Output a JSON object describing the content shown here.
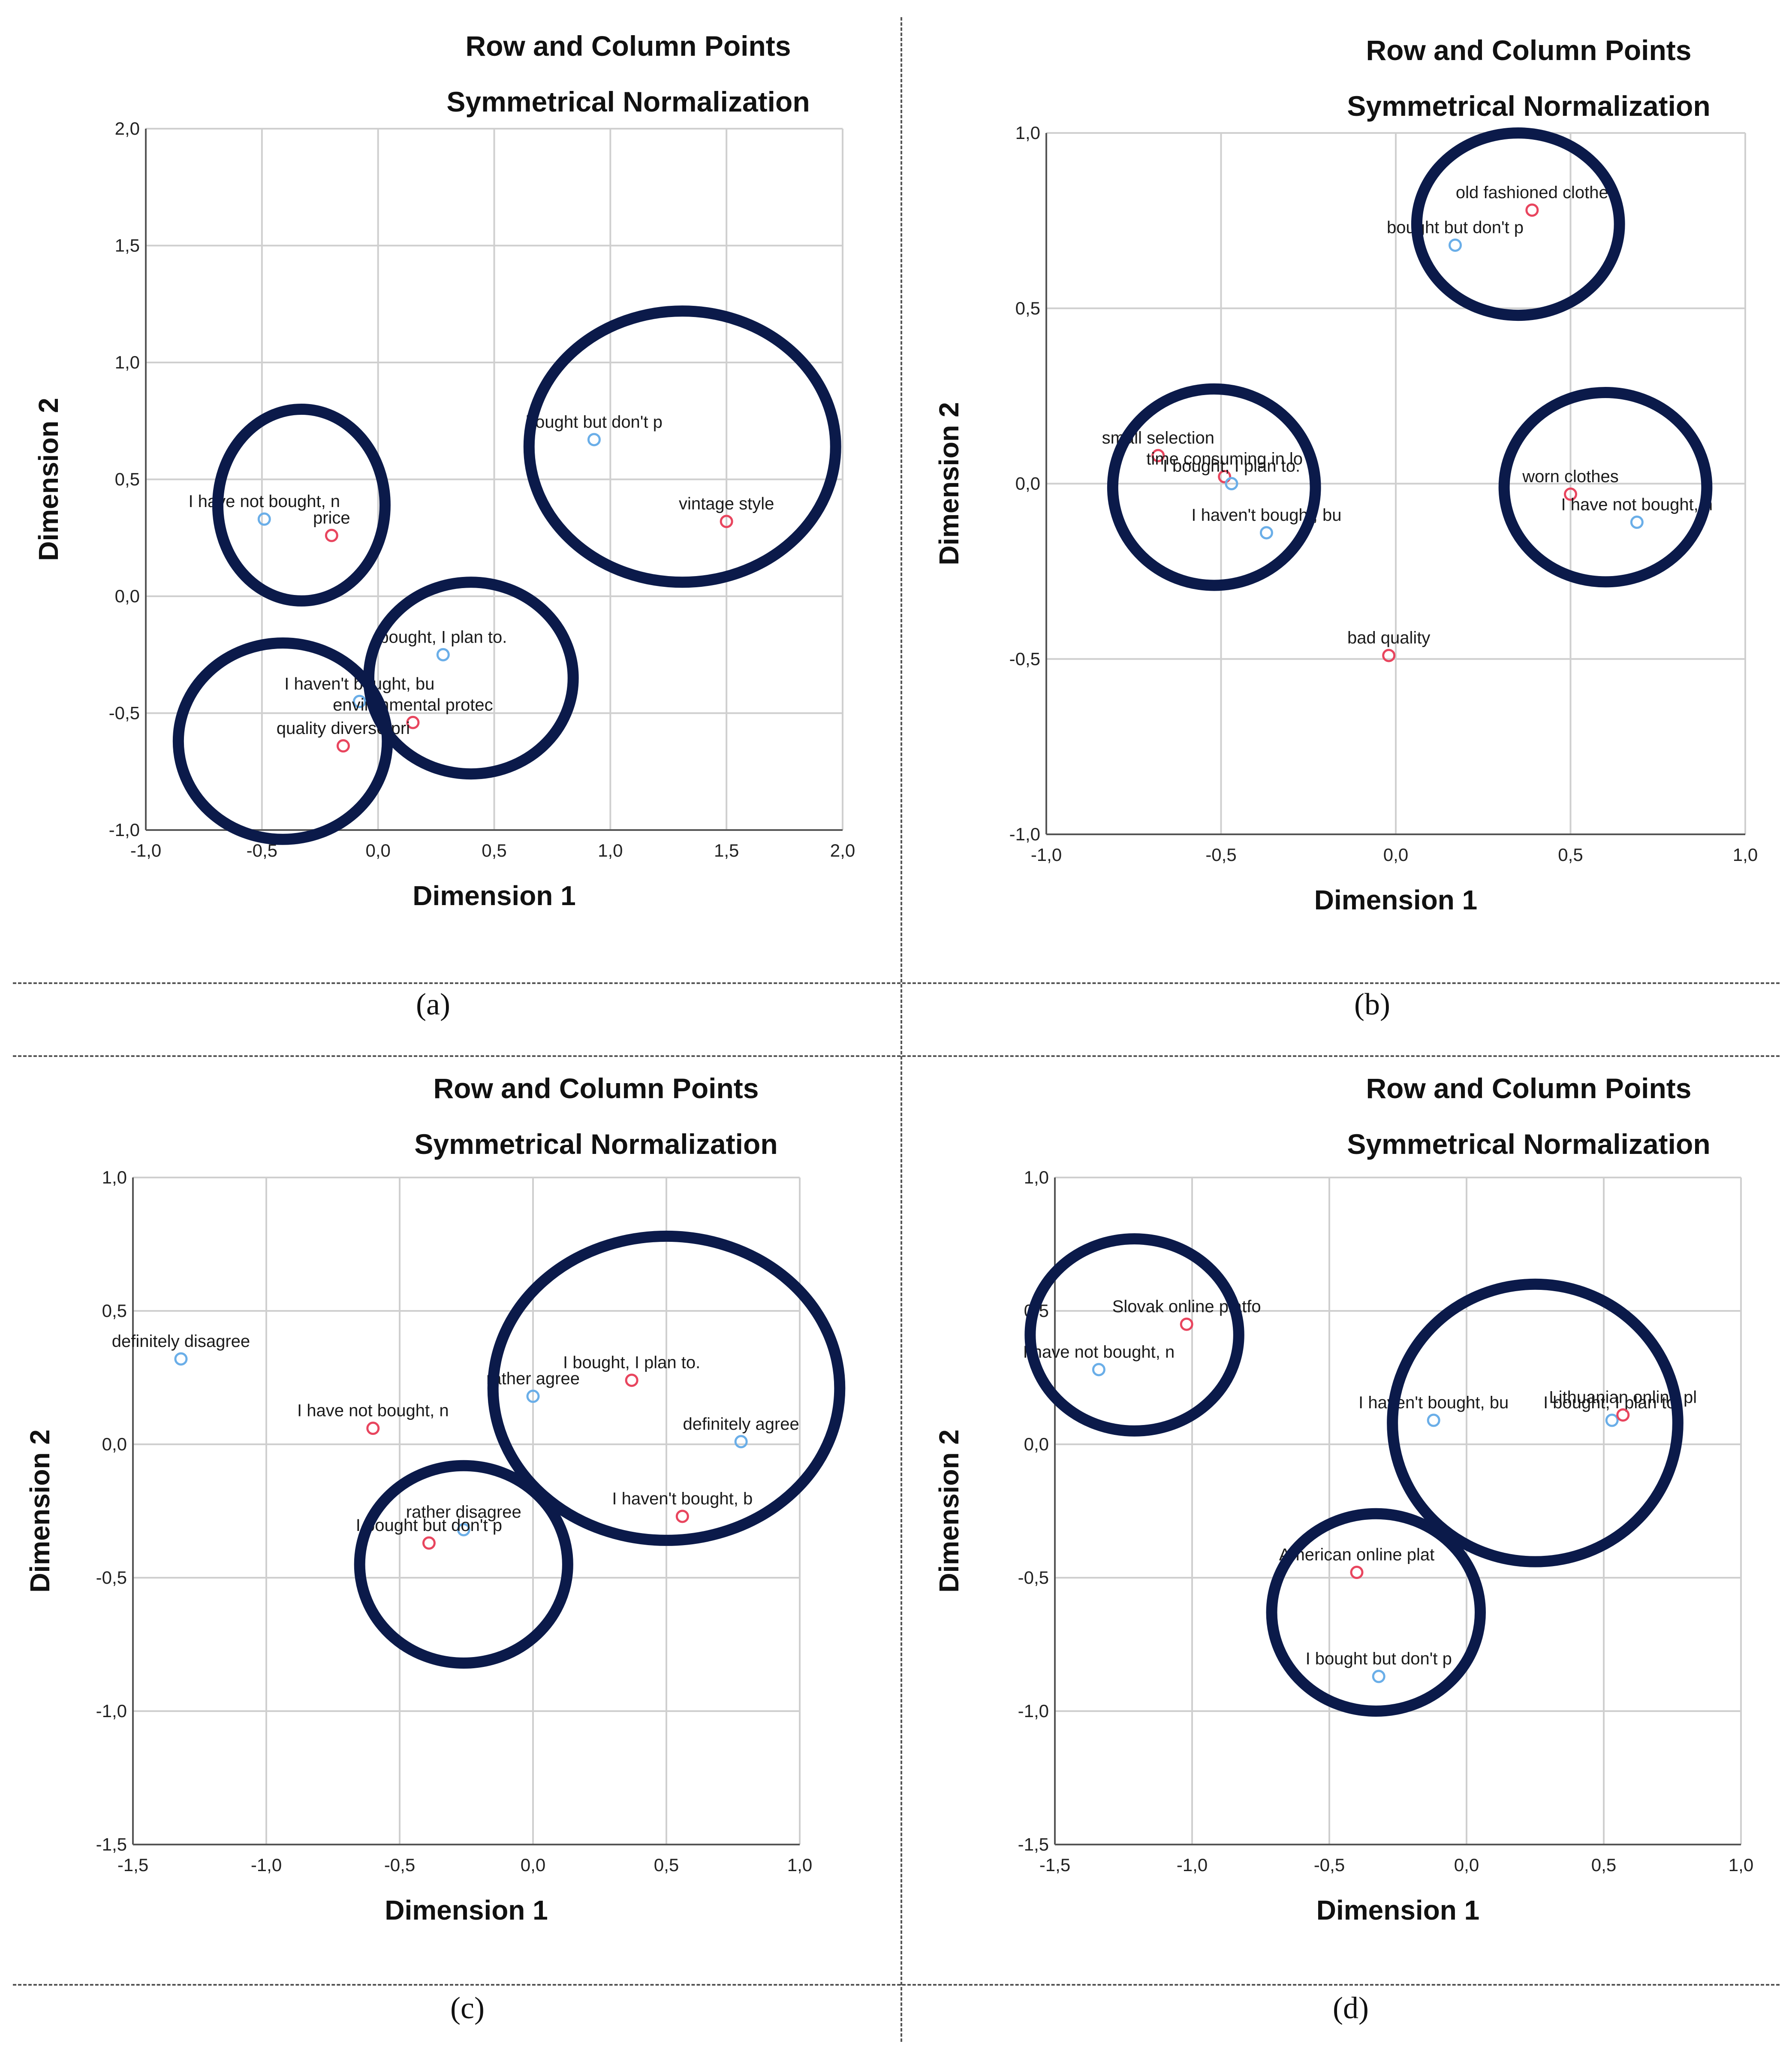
{
  "colors": {
    "row_point": "#6aaee8",
    "column_point": "#e8455e",
    "circle": "#0b1a4a",
    "grid": "#cfcfcf"
  },
  "captions": [
    "(a)",
    "(b)",
    "(c)",
    "(d)"
  ],
  "chart_data": [
    {
      "type": "scatter",
      "title": "Row and Column Points",
      "subtitle": "Symmetrical Normalization",
      "xlabel": "Dimension 1",
      "ylabel": "Dimension 2",
      "xlim": [
        -1.0,
        2.0
      ],
      "ylim": [
        -1.0,
        2.0
      ],
      "xticks": [
        -1.0,
        -0.5,
        0.0,
        0.5,
        1.0,
        1.5,
        2.0
      ],
      "yticks": [
        -1.0,
        -0.5,
        0.0,
        0.5,
        1.0,
        1.5,
        2.0
      ],
      "xtick_labels": [
        "-1,0",
        "-0,5",
        "0,0",
        "0,5",
        "1,0",
        "1,5",
        "2,0"
      ],
      "ytick_labels": [
        "-1,0",
        "-0,5",
        "0,0",
        "0,5",
        "1,0",
        "1,5",
        "2,0"
      ],
      "grid": true,
      "points": [
        {
          "label": "I have not bought, n",
          "x": -0.49,
          "y": 0.33,
          "kind": "row"
        },
        {
          "label": "price",
          "x": -0.2,
          "y": 0.26,
          "kind": "column"
        },
        {
          "label": "bought but don't p",
          "x": 0.93,
          "y": 0.67,
          "kind": "row"
        },
        {
          "label": "vintage style",
          "x": 1.5,
          "y": 0.32,
          "kind": "column"
        },
        {
          "label": "bought, I plan to.",
          "x": 0.28,
          "y": -0.25,
          "kind": "row"
        },
        {
          "label": "I haven't bought, bu",
          "x": -0.08,
          "y": -0.45,
          "kind": "row"
        },
        {
          "label": "environmental protec",
          "x": 0.15,
          "y": -0.54,
          "kind": "column"
        },
        {
          "label": "quality diverse pri",
          "x": -0.15,
          "y": -0.64,
          "kind": "column"
        }
      ],
      "circles": [
        {
          "cx": -0.33,
          "cy": 0.39,
          "rx": 0.36,
          "ry": 0.41
        },
        {
          "cx": 1.31,
          "cy": 0.64,
          "rx": 0.66,
          "ry": 0.58
        },
        {
          "cx": 0.4,
          "cy": -0.35,
          "rx": 0.44,
          "ry": 0.41
        },
        {
          "cx": -0.41,
          "cy": -0.62,
          "rx": 0.45,
          "ry": 0.42
        }
      ]
    },
    {
      "type": "scatter",
      "title": "Row and Column Points",
      "subtitle": "Symmetrical Normalization",
      "xlabel": "Dimension 1",
      "ylabel": "Dimension 2",
      "xlim": [
        -1.0,
        1.0
      ],
      "ylim": [
        -1.0,
        1.0
      ],
      "xticks": [
        -1.0,
        -0.5,
        0.0,
        0.5,
        1.0
      ],
      "yticks": [
        -1.0,
        -0.5,
        0.0,
        0.5,
        1.0
      ],
      "xtick_labels": [
        "-1,0",
        "-0,5",
        "0,0",
        "0,5",
        "1,0"
      ],
      "ytick_labels": [
        "-1,0",
        "-0,5",
        "0,0",
        "0,5",
        "1,0"
      ],
      "grid": true,
      "points": [
        {
          "label": "old fashioned clothe",
          "x": 0.39,
          "y": 0.78,
          "kind": "column"
        },
        {
          "label": "bought but don't p",
          "x": 0.17,
          "y": 0.68,
          "kind": "row"
        },
        {
          "label": "small selection",
          "x": -0.68,
          "y": 0.08,
          "kind": "column"
        },
        {
          "label": "time consuming in lo",
          "x": -0.49,
          "y": 0.02,
          "kind": "column"
        },
        {
          "label": "I bought, I plan to.",
          "x": -0.47,
          "y": 0.0,
          "kind": "row"
        },
        {
          "label": "I haven't bought, bu",
          "x": -0.37,
          "y": -0.14,
          "kind": "row"
        },
        {
          "label": "worn clothes",
          "x": 0.5,
          "y": -0.03,
          "kind": "column"
        },
        {
          "label": "I have not bought, n",
          "x": 0.69,
          "y": -0.11,
          "kind": "row"
        },
        {
          "label": "bad quality",
          "x": -0.02,
          "y": -0.49,
          "kind": "column"
        }
      ],
      "circles": [
        {
          "cx": 0.35,
          "cy": 0.74,
          "rx": 0.29,
          "ry": 0.26
        },
        {
          "cx": -0.52,
          "cy": -0.01,
          "rx": 0.29,
          "ry": 0.28
        },
        {
          "cx": 0.6,
          "cy": -0.01,
          "rx": 0.29,
          "ry": 0.27
        }
      ]
    },
    {
      "type": "scatter",
      "title": "Row and Column Points",
      "subtitle": "Symmetrical Normalization",
      "xlabel": "Dimension 1",
      "ylabel": "Dimension 2",
      "xlim": [
        -1.5,
        1.0
      ],
      "ylim": [
        -1.5,
        1.0
      ],
      "xticks": [
        -1.5,
        -1.0,
        -0.5,
        0.0,
        0.5,
        1.0
      ],
      "yticks": [
        -1.5,
        -1.0,
        -0.5,
        0.0,
        0.5,
        1.0
      ],
      "xtick_labels": [
        "-1,5",
        "-1,0",
        "-0,5",
        "0,0",
        "0,5",
        "1,0"
      ],
      "ytick_labels": [
        "-1,5",
        "-1,0",
        "-0,5",
        "0,0",
        "0,5",
        "1,0"
      ],
      "grid": true,
      "points": [
        {
          "label": "definitely disagree",
          "x": -1.32,
          "y": 0.32,
          "kind": "row"
        },
        {
          "label": "I have not bought, n",
          "x": -0.6,
          "y": 0.06,
          "kind": "column"
        },
        {
          "label": "rather agree",
          "x": 0.0,
          "y": 0.18,
          "kind": "row"
        },
        {
          "label": "I bought, I plan to.",
          "x": 0.37,
          "y": 0.24,
          "kind": "column"
        },
        {
          "label": "definitely agree",
          "x": 0.78,
          "y": 0.01,
          "kind": "row"
        },
        {
          "label": "I haven't bought, b",
          "x": 0.56,
          "y": -0.27,
          "kind": "column"
        },
        {
          "label": "rather disagree",
          "x": -0.26,
          "y": -0.32,
          "kind": "row"
        },
        {
          "label": "I bought but don't p",
          "x": -0.39,
          "y": -0.37,
          "kind": "column"
        }
      ],
      "circles": [
        {
          "cx": 0.5,
          "cy": 0.21,
          "rx": 0.65,
          "ry": 0.57
        },
        {
          "cx": -0.26,
          "cy": -0.45,
          "rx": 0.39,
          "ry": 0.37
        }
      ]
    },
    {
      "type": "scatter",
      "title": "Row and Column Points",
      "subtitle": "Symmetrical Normalization",
      "xlabel": "Dimension 1",
      "ylabel": "Dimension 2",
      "xlim": [
        -1.5,
        1.0
      ],
      "ylim": [
        -1.5,
        1.0
      ],
      "xticks": [
        -1.5,
        -1.0,
        -0.5,
        0.0,
        0.5,
        1.0
      ],
      "yticks": [
        -1.5,
        -1.0,
        -0.5,
        0.0,
        0.5,
        1.0
      ],
      "xtick_labels": [
        "-1,5",
        "-1,0",
        "-0,5",
        "0,0",
        "0,5",
        "1,0"
      ],
      "ytick_labels": [
        "-1,5",
        "-1,0",
        "-0,5",
        "0,0",
        "0,5",
        "1,0"
      ],
      "grid": true,
      "points": [
        {
          "label": "Slovak online platfo",
          "x": -1.02,
          "y": 0.45,
          "kind": "column"
        },
        {
          "label": "I have not bought, n",
          "x": -1.34,
          "y": 0.28,
          "kind": "row"
        },
        {
          "label": "I haven't bought, bu",
          "x": -0.12,
          "y": 0.09,
          "kind": "row"
        },
        {
          "label": "I bought, I plan to.",
          "x": 0.53,
          "y": 0.09,
          "kind": "row"
        },
        {
          "label": "Lithuanian online pl",
          "x": 0.57,
          "y": 0.11,
          "kind": "column"
        },
        {
          "label": "American online plat",
          "x": -0.4,
          "y": -0.48,
          "kind": "column"
        },
        {
          "label": "I bought but don't p",
          "x": -0.32,
          "y": -0.87,
          "kind": "row"
        }
      ],
      "circles": [
        {
          "cx": -1.21,
          "cy": 0.41,
          "rx": 0.38,
          "ry": 0.36
        },
        {
          "cx": 0.25,
          "cy": 0.08,
          "rx": 0.52,
          "ry": 0.52
        },
        {
          "cx": -0.33,
          "cy": -0.63,
          "rx": 0.38,
          "ry": 0.37
        }
      ]
    }
  ]
}
